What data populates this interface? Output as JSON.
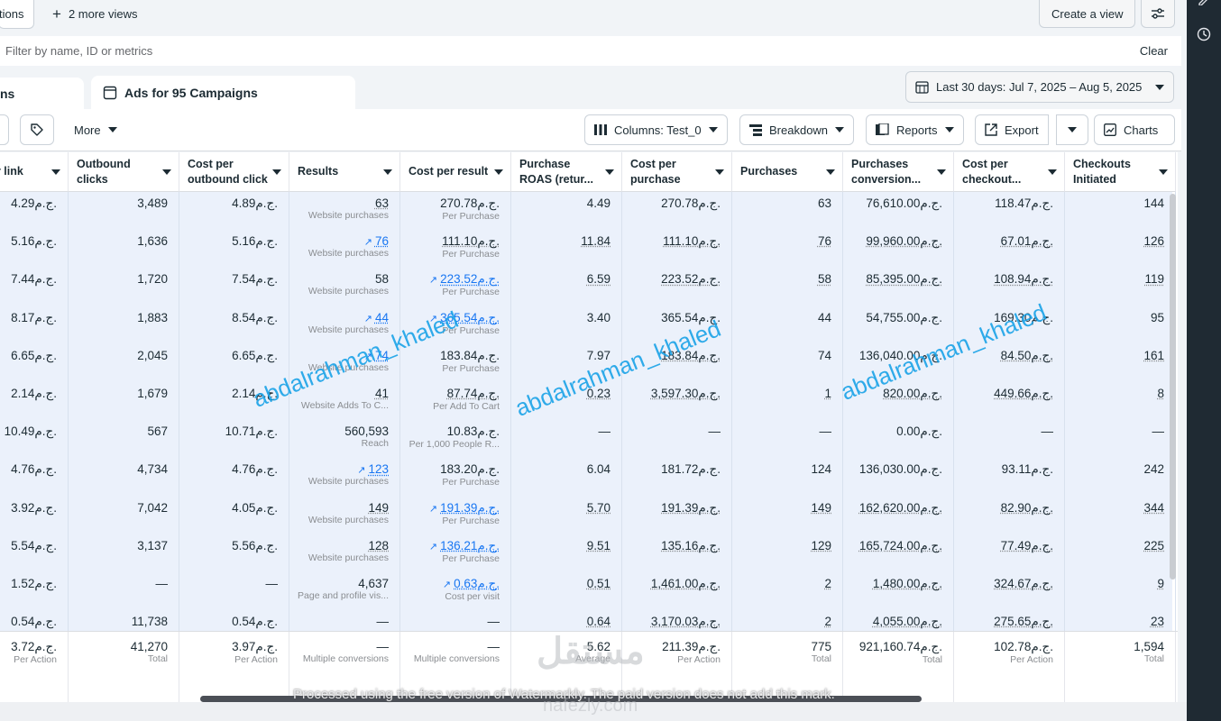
{
  "topbar": {
    "tab_partial": "tions",
    "more_views": "2 more views",
    "create_view": "Create a view"
  },
  "filter": {
    "placeholder": "Filter by name, ID or metrics",
    "clear": "Clear"
  },
  "tabs": {
    "left_partial": "ns",
    "ads": "Ads for 95 Campaigns"
  },
  "date_range": "Last 30 days: Jul 7, 2025 – Aug 5, 2025",
  "toolbar": {
    "more": "More",
    "columns": "Columns: Test_0",
    "breakdown": "Breakdown",
    "reports": "Reports",
    "export": "Export",
    "charts": "Charts"
  },
  "columns": [
    {
      "label": "er link",
      "label2": ""
    },
    {
      "label": "Outbound",
      "label2": "clicks"
    },
    {
      "label": "Cost per",
      "label2": "outbound click"
    },
    {
      "label": "Results",
      "label2": ""
    },
    {
      "label": "Cost per result",
      "label2": ""
    },
    {
      "label": "Purchase",
      "label2": "ROAS (retur..."
    },
    {
      "label": "Cost per",
      "label2": "purchase"
    },
    {
      "label": "Purchases",
      "label2": ""
    },
    {
      "label": "Purchases",
      "label2": "conversion..."
    },
    {
      "label": "Cost per",
      "label2": "checkout..."
    },
    {
      "label": "Checkouts",
      "label2": "Initiated"
    }
  ],
  "rows": [
    [
      {
        "v": "4.29ج.م."
      },
      {
        "v": "3,489"
      },
      {
        "v": "4.89ج.م."
      },
      {
        "v": "63",
        "s": "Website purchases",
        "u": 1
      },
      {
        "v": "270.78ج.م.",
        "s": "Per Purchase"
      },
      {
        "v": "4.49"
      },
      {
        "v": "270.78ج.م."
      },
      {
        "v": "63"
      },
      {
        "v": "76,610.00ج.م."
      },
      {
        "v": "118.47ج.م."
      },
      {
        "v": "144"
      }
    ],
    [
      {
        "v": "5.16ج.م."
      },
      {
        "v": "1,636"
      },
      {
        "v": "5.16ج.م."
      },
      {
        "v": "76",
        "s": "Website purchases",
        "t": 1
      },
      {
        "v": "111.10ج.م.",
        "s": "Per Purchase",
        "u": 1
      },
      {
        "v": "11.84",
        "u": 1
      },
      {
        "v": "111.10ج.م.",
        "u": 1
      },
      {
        "v": "76",
        "u": 1
      },
      {
        "v": "99,960.00ج.م.",
        "u": 1
      },
      {
        "v": "67.01ج.م.",
        "u": 1
      },
      {
        "v": "126",
        "u": 1
      }
    ],
    [
      {
        "v": "7.44ج.م."
      },
      {
        "v": "1,720"
      },
      {
        "v": "7.54ج.م."
      },
      {
        "v": "58",
        "s": "Website purchases"
      },
      {
        "v": "223.52ج.م.",
        "s": "Per Purchase",
        "t": 1
      },
      {
        "v": "6.59",
        "u": 1
      },
      {
        "v": "223.52ج.م.",
        "u": 1
      },
      {
        "v": "58",
        "u": 1
      },
      {
        "v": "85,395.00ج.م.",
        "u": 1
      },
      {
        "v": "108.94ج.م.",
        "u": 1
      },
      {
        "v": "119",
        "u": 1
      }
    ],
    [
      {
        "v": "8.17ج.م."
      },
      {
        "v": "1,883"
      },
      {
        "v": "8.54ج.م."
      },
      {
        "v": "44",
        "s": "Website purchases",
        "t": 1
      },
      {
        "v": "365.54ج.م.",
        "s": "Per Purchase",
        "t": 1
      },
      {
        "v": "3.40"
      },
      {
        "v": "365.54ج.م."
      },
      {
        "v": "44"
      },
      {
        "v": "54,755.00ج.م."
      },
      {
        "v": "169.30ج.م."
      },
      {
        "v": "95"
      }
    ],
    [
      {
        "v": "6.65ج.م."
      },
      {
        "v": "2,045"
      },
      {
        "v": "6.65ج.م."
      },
      {
        "v": "74",
        "s": "Website purchases",
        "t": 1
      },
      {
        "v": "183.84ج.م.",
        "s": "Per Purchase"
      },
      {
        "v": "7.97"
      },
      {
        "v": "183.84ج.م.",
        "u": 1
      },
      {
        "v": "74"
      },
      {
        "v": "136,040.00ج.م."
      },
      {
        "v": "84.50ج.م.",
        "u": 1
      },
      {
        "v": "161",
        "u": 1
      }
    ],
    [
      {
        "v": "2.14ج.م."
      },
      {
        "v": "1,679"
      },
      {
        "v": "2.14ج.م."
      },
      {
        "v": "41",
        "s": "Website Adds To C...",
        "u": 1
      },
      {
        "v": "87.74ج.م.",
        "s": "Per Add To Cart",
        "u": 1
      },
      {
        "v": "0.23",
        "u": 1
      },
      {
        "v": "3,597.30ج.م.",
        "u": 1
      },
      {
        "v": "1",
        "u": 1
      },
      {
        "v": "820.00ج.م.",
        "u": 1
      },
      {
        "v": "449.66ج.م.",
        "u": 1
      },
      {
        "v": "8",
        "u": 1
      }
    ],
    [
      {
        "v": "10.49ج.م."
      },
      {
        "v": "567"
      },
      {
        "v": "10.71ج.م."
      },
      {
        "v": "560,593",
        "s": "Reach"
      },
      {
        "v": "10.83ج.م.",
        "s": "Per 1,000 People R..."
      },
      {
        "v": "—"
      },
      {
        "v": "—"
      },
      {
        "v": "—"
      },
      {
        "v": "0.00ج.م."
      },
      {
        "v": "—"
      },
      {
        "v": "—"
      }
    ],
    [
      {
        "v": "4.76ج.م."
      },
      {
        "v": "4,734"
      },
      {
        "v": "4.76ج.م."
      },
      {
        "v": "123",
        "s": "Website purchases",
        "t": 1
      },
      {
        "v": "183.20ج.م.",
        "s": "Per Purchase"
      },
      {
        "v": "6.04"
      },
      {
        "v": "181.72ج.م."
      },
      {
        "v": "124"
      },
      {
        "v": "136,030.00ج.م."
      },
      {
        "v": "93.11ج.م."
      },
      {
        "v": "242"
      }
    ],
    [
      {
        "v": "3.92ج.م."
      },
      {
        "v": "7,042"
      },
      {
        "v": "4.05ج.م."
      },
      {
        "v": "149",
        "s": "Website purchases",
        "u": 1
      },
      {
        "v": "191.39ج.م.",
        "s": "Per Purchase",
        "t": 1
      },
      {
        "v": "5.70",
        "u": 1
      },
      {
        "v": "191.39ج.م.",
        "u": 1
      },
      {
        "v": "149",
        "u": 1
      },
      {
        "v": "162,620.00ج.م.",
        "u": 1
      },
      {
        "v": "82.90ج.م.",
        "u": 1
      },
      {
        "v": "344",
        "u": 1
      }
    ],
    [
      {
        "v": "5.54ج.م."
      },
      {
        "v": "3,137"
      },
      {
        "v": "5.56ج.م."
      },
      {
        "v": "128",
        "s": "Website purchases",
        "u": 1
      },
      {
        "v": "136.21ج.م.",
        "s": "Per Purchase",
        "t": 1
      },
      {
        "v": "9.51",
        "u": 1
      },
      {
        "v": "135.16ج.م.",
        "u": 1
      },
      {
        "v": "129",
        "u": 1
      },
      {
        "v": "165,724.00ج.م.",
        "u": 1
      },
      {
        "v": "77.49ج.م.",
        "u": 1
      },
      {
        "v": "225",
        "u": 1
      }
    ],
    [
      {
        "v": "1.52ج.م."
      },
      {
        "v": "—"
      },
      {
        "v": "—"
      },
      {
        "v": "4,637",
        "s": "Page and profile vis..."
      },
      {
        "v": "0.63ج.م.",
        "s": "Cost per visit",
        "t": 1
      },
      {
        "v": "0.51",
        "u": 1
      },
      {
        "v": "1,461.00ج.م.",
        "u": 1
      },
      {
        "v": "2",
        "u": 1
      },
      {
        "v": "1,480.00ج.م.",
        "u": 1
      },
      {
        "v": "324.67ج.م.",
        "u": 1
      },
      {
        "v": "9",
        "u": 1
      }
    ],
    [
      {
        "v": "0.54ج.م."
      },
      {
        "v": "11,738"
      },
      {
        "v": "0.54ج.م."
      },
      {
        "v": "—"
      },
      {
        "v": "—"
      },
      {
        "v": "0.64",
        "u": 1
      },
      {
        "v": "3,170.03ج.م.",
        "u": 1
      },
      {
        "v": "2",
        "u": 1
      },
      {
        "v": "4,055.00ج.م.",
        "u": 1
      },
      {
        "v": "275.65ج.م.",
        "u": 1
      },
      {
        "v": "23",
        "u": 1
      }
    ]
  ],
  "summary": [
    {
      "v": "3.72ج.م.",
      "s": "Per Action"
    },
    {
      "v": "41,270",
      "s": "Total"
    },
    {
      "v": "3.97ج.م.",
      "s": "Per Action"
    },
    {
      "v": "—",
      "s": "Multiple conversions"
    },
    {
      "v": "—",
      "s": "Multiple conversions"
    },
    {
      "v": "5.62",
      "s": "Average"
    },
    {
      "v": "211.39ج.م.",
      "s": "Per Action"
    },
    {
      "v": "775",
      "s": "Total"
    },
    {
      "v": "921,160.74ج.م.",
      "s": "Total"
    },
    {
      "v": "102.78ج.م.",
      "s": "Per Action"
    },
    {
      "v": "1,594",
      "s": "Total"
    }
  ],
  "watermarks": [
    "abdalrahman_khaled",
    "abdalrahman_khaled",
    "abdalrahman_khaled"
  ],
  "processed_note": "Processed using the free version of Watermarkly. The paid version does not add this mark.",
  "logo_watermark": "مستقل",
  "logo_watermark_url": "nafezly.com",
  "colors": {
    "accent": "#1876f2",
    "watermark": "#1aa3e8",
    "row_bg": "#ebf1fb"
  }
}
